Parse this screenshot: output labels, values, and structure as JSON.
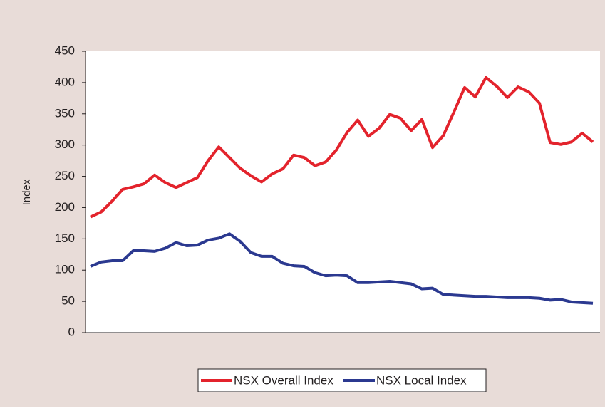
{
  "chart_data": {
    "type": "line",
    "y_label": "Index",
    "series": [
      {
        "name": "NSX Overall Index",
        "color": "#e3232c",
        "values": [
          185,
          193,
          210,
          229,
          233,
          238,
          252,
          240,
          232,
          240,
          248,
          275,
          297,
          280,
          263,
          251,
          241,
          254,
          262,
          284,
          280,
          267,
          273,
          292,
          320,
          340,
          314,
          327,
          349,
          343,
          323,
          341,
          296,
          315,
          353,
          392,
          377,
          408,
          394,
          376,
          393,
          385,
          367,
          304,
          301,
          305,
          319,
          305
        ]
      },
      {
        "name": "NSX Local Index",
        "color": "#2b3990",
        "values": [
          106,
          113,
          115,
          115,
          131,
          131,
          130,
          135,
          144,
          139,
          140,
          148,
          151,
          158,
          146,
          128,
          122,
          122,
          111,
          107,
          106,
          96,
          91,
          92,
          91,
          80,
          80,
          81,
          82,
          80,
          78,
          70,
          71,
          61,
          60,
          59,
          58,
          58,
          57,
          56,
          56,
          56,
          55,
          52,
          53,
          49,
          48,
          47
        ]
      }
    ],
    "ylim": [
      0,
      450
    ],
    "yticks": [
      0,
      50,
      100,
      150,
      200,
      250,
      300,
      350,
      400,
      450
    ],
    "grid": false
  }
}
